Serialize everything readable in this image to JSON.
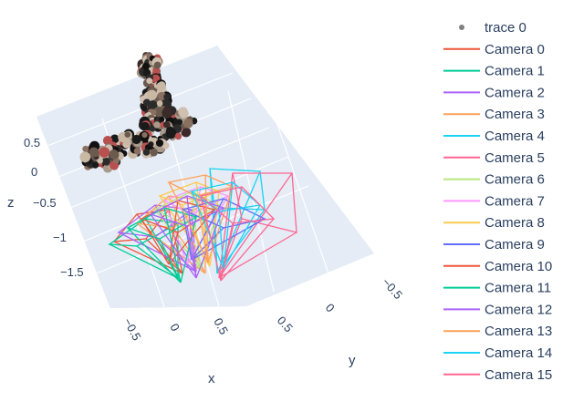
{
  "chart_data": {
    "type": "scatter3d",
    "axes": {
      "x": {
        "title": "x",
        "ticks": [
          "−0.5",
          "0",
          "0.5"
        ]
      },
      "y": {
        "title": "y",
        "ticks": [
          "0.5",
          "0",
          "−0.5"
        ]
      },
      "z": {
        "title": "z",
        "ticks": [
          "0.5",
          "0",
          "−0.5",
          "−1",
          "−1.5"
        ]
      }
    },
    "legend": {
      "placement": "right",
      "entries": [
        {
          "name": "trace 0",
          "symbol": "marker",
          "color": "#808080"
        },
        {
          "name": "Camera 0",
          "symbol": "line",
          "color": "#EF553B"
        },
        {
          "name": "Camera 1",
          "symbol": "line",
          "color": "#00CC96"
        },
        {
          "name": "Camera 2",
          "symbol": "line",
          "color": "#AB63FA"
        },
        {
          "name": "Camera 3",
          "symbol": "line",
          "color": "#FFA15A"
        },
        {
          "name": "Camera 4",
          "symbol": "line",
          "color": "#19D3F3"
        },
        {
          "name": "Camera 5",
          "symbol": "line",
          "color": "#FF6692"
        },
        {
          "name": "Camera 6",
          "symbol": "line",
          "color": "#B6E880"
        },
        {
          "name": "Camera 7",
          "symbol": "line",
          "color": "#FF97FF"
        },
        {
          "name": "Camera 8",
          "symbol": "line",
          "color": "#FECB52"
        },
        {
          "name": "Camera 9",
          "symbol": "line",
          "color": "#636EFA"
        },
        {
          "name": "Camera 10",
          "symbol": "line",
          "color": "#EF553B"
        },
        {
          "name": "Camera 11",
          "symbol": "line",
          "color": "#00CC96"
        },
        {
          "name": "Camera 12",
          "symbol": "line",
          "color": "#AB63FA"
        },
        {
          "name": "Camera 13",
          "symbol": "line",
          "color": "#FFA15A"
        },
        {
          "name": "Camera 14",
          "symbol": "line",
          "color": "#19D3F3"
        },
        {
          "name": "Camera 15",
          "symbol": "line",
          "color": "#FF6692"
        }
      ]
    },
    "scene_background": "#E5ECF6",
    "grid": true
  }
}
